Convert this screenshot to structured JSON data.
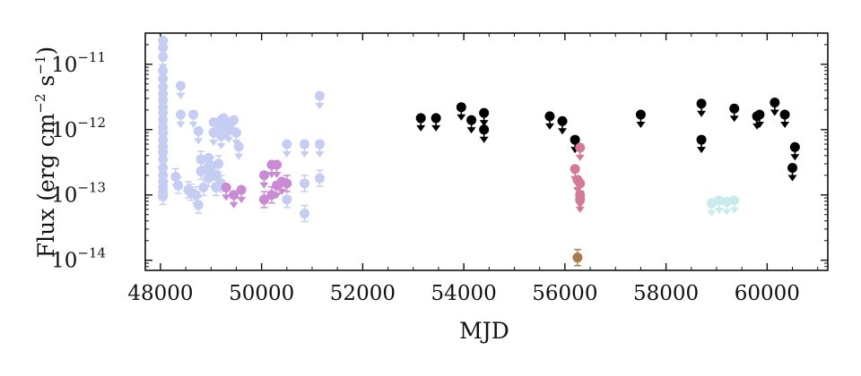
{
  "chart_data": {
    "type": "scatter",
    "title": "",
    "xlabel": "MJD",
    "ylabel": "Flux (erg cm⁻² s⁻¹)",
    "ylabel_parts": {
      "main": "Flux (erg cm",
      "exp1": "−2",
      "mid": " s",
      "exp2": "−1",
      "end": ")"
    },
    "xlim": [
      47700,
      61200
    ],
    "ylim": [
      7e-15,
      3e-11
    ],
    "yscale": "log",
    "grid": false,
    "legend": "none",
    "x_ticks": [
      48000,
      50000,
      52000,
      54000,
      56000,
      58000,
      60000
    ],
    "y_ticks": [
      {
        "value": 1e-11,
        "mant": "10",
        "exp": "−11"
      },
      {
        "value": 1e-12,
        "mant": "10",
        "exp": "−12"
      },
      {
        "value": 1e-13,
        "mant": "10",
        "exp": "−13"
      },
      {
        "value": 1e-14,
        "mant": "10",
        "exp": "−14"
      }
    ],
    "series": [
      {
        "color": "#c5cdf3",
        "points": [
          [
            48050,
            2.3e-11,
            1
          ],
          [
            48050,
            1.8e-11,
            1
          ],
          [
            48050,
            1.3e-11,
            1
          ],
          [
            48050,
            8e-12,
            1
          ],
          [
            48050,
            6e-12,
            1
          ],
          [
            48050,
            4.5e-12,
            1
          ],
          [
            48050,
            3.5e-12,
            1
          ],
          [
            48050,
            2.8e-12,
            1
          ],
          [
            48050,
            2.2e-12,
            1
          ],
          [
            48050,
            1.8e-12,
            1
          ],
          [
            48050,
            1.4e-12,
            1
          ],
          [
            48050,
            1.1e-12,
            1
          ],
          [
            48050,
            9e-13,
            1
          ],
          [
            48050,
            7e-13,
            1
          ],
          [
            48050,
            5.5e-13,
            1
          ],
          [
            48050,
            4.5e-13,
            1
          ],
          [
            48050,
            3.5e-13,
            1
          ],
          [
            48050,
            2.6e-13,
            1
          ],
          [
            48050,
            2e-13,
            1
          ],
          [
            48050,
            1.6e-13,
            1
          ],
          [
            48050,
            1.3e-13,
            1
          ],
          [
            48050,
            1.1e-13,
            0
          ],
          [
            48050,
            9.5e-14,
            0
          ],
          [
            48300,
            1.9e-13,
            0
          ],
          [
            48350,
            1.4e-13,
            0
          ],
          [
            48400,
            4.7e-12,
            1
          ],
          [
            48400,
            1.7e-12,
            1
          ],
          [
            48550,
            1.2e-13,
            0
          ],
          [
            48600,
            1.1e-13,
            0
          ],
          [
            48650,
            1.7e-12,
            1
          ],
          [
            48700,
            1e-13,
            0
          ],
          [
            48750,
            9.5e-13,
            1
          ],
          [
            48750,
            7e-14,
            0
          ],
          [
            48800,
            2.3e-13,
            0
          ],
          [
            48800,
            3.5e-13,
            0
          ],
          [
            48850,
            1.3e-13,
            0
          ],
          [
            48900,
            2.5e-13,
            0
          ],
          [
            48950,
            1.8e-13,
            0
          ],
          [
            48950,
            3.7e-13,
            1
          ],
          [
            49000,
            2.2e-13,
            0
          ],
          [
            49000,
            2.8e-13,
            0
          ],
          [
            49050,
            1.3e-12,
            1
          ],
          [
            49050,
            9e-13,
            1
          ],
          [
            49100,
            2e-13,
            0
          ],
          [
            49100,
            1.3e-13,
            0
          ],
          [
            49150,
            1.2e-12,
            1
          ],
          [
            49150,
            3e-13,
            0
          ],
          [
            49200,
            1.4e-12,
            1
          ],
          [
            49200,
            8e-13,
            1
          ],
          [
            49200,
            1.5e-13,
            0
          ],
          [
            49250,
            1.5e-12,
            1
          ],
          [
            49300,
            1.1e-12,
            1
          ],
          [
            49350,
            1e-12,
            1
          ],
          [
            49400,
            1.3e-12,
            1
          ],
          [
            49450,
            1.4e-12,
            1
          ],
          [
            49500,
            9e-13,
            1
          ],
          [
            49550,
            5.5e-13,
            1
          ],
          [
            50500,
            6e-13,
            1
          ],
          [
            50500,
            8.5e-14,
            0
          ],
          [
            50850,
            6e-13,
            1
          ],
          [
            50850,
            1.5e-13,
            0
          ],
          [
            50850,
            5.2e-14,
            0
          ],
          [
            51150,
            3.3e-12,
            1
          ],
          [
            51150,
            6e-13,
            1
          ],
          [
            51150,
            1.8e-13,
            0
          ]
        ]
      },
      {
        "color": "#c98bd3",
        "points": [
          [
            49300,
            1.3e-13,
            1
          ],
          [
            49450,
            1e-13,
            1
          ],
          [
            49600,
            1.2e-13,
            1
          ],
          [
            50050,
            2e-13,
            1
          ],
          [
            50050,
            8.5e-14,
            0
          ],
          [
            50200,
            2.9e-13,
            1
          ],
          [
            50200,
            1e-13,
            0
          ],
          [
            50300,
            2.9e-13,
            1
          ],
          [
            50300,
            1.4e-13,
            1
          ],
          [
            50400,
            1.6e-13,
            1
          ],
          [
            50500,
            1.5e-13,
            0
          ]
        ]
      },
      {
        "color": "#000000",
        "points": [
          [
            53150,
            1.5e-12,
            1
          ],
          [
            53450,
            1.5e-12,
            1
          ],
          [
            53950,
            2.2e-12,
            1
          ],
          [
            54150,
            1.4e-12,
            1
          ],
          [
            54400,
            1.8e-12,
            1
          ],
          [
            54400,
            1e-12,
            1
          ],
          [
            55700,
            1.6e-12,
            1
          ],
          [
            55950,
            1.35e-12,
            1
          ],
          [
            56200,
            7e-13,
            1
          ],
          [
            57500,
            1.7e-12,
            1
          ],
          [
            58700,
            2.5e-12,
            1
          ],
          [
            58700,
            7e-13,
            1
          ],
          [
            59350,
            2.1e-12,
            1
          ],
          [
            59800,
            1.6e-12,
            1
          ],
          [
            59850,
            1.7e-12,
            1
          ],
          [
            60150,
            2.6e-12,
            1
          ],
          [
            60350,
            1.7e-12,
            1
          ],
          [
            60500,
            2.6e-13,
            1
          ],
          [
            60550,
            5.4e-13,
            1
          ]
        ]
      },
      {
        "color": "#d47a96",
        "points": [
          [
            56200,
            2.5e-13,
            1
          ],
          [
            56250,
            1.7e-13,
            1
          ],
          [
            56300,
            5.3e-13,
            1
          ],
          [
            56300,
            1.5e-13,
            1
          ],
          [
            56300,
            1e-13,
            1
          ],
          [
            56300,
            8.5e-14,
            1
          ]
        ]
      },
      {
        "color": "#a97b4a",
        "points": [
          [
            56250,
            1.1e-14,
            0
          ]
        ]
      },
      {
        "color": "#c8ebee",
        "points": [
          [
            58900,
            7.5e-14,
            1
          ],
          [
            59050,
            8.2e-14,
            1
          ],
          [
            59200,
            7.8e-14,
            1
          ],
          [
            59350,
            8.3e-14,
            1
          ]
        ]
      }
    ]
  }
}
